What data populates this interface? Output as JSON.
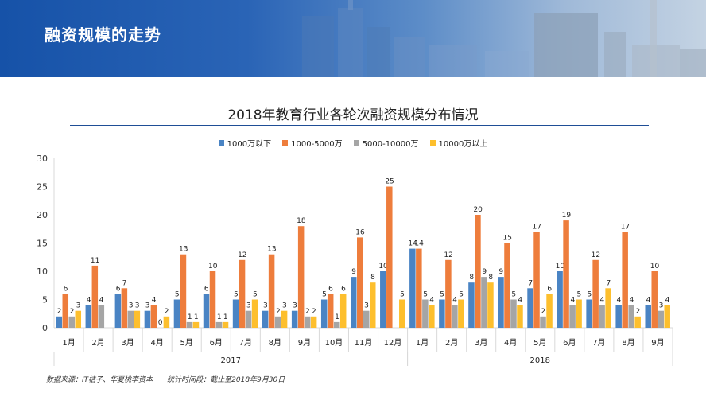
{
  "banner": {
    "title": "融资规模的走势"
  },
  "chart_data": {
    "type": "bar",
    "title": "2018年教育行业各轮次融资规模分布情况",
    "categories": [
      "1月",
      "2月",
      "3月",
      "4月",
      "5月",
      "6月",
      "7月",
      "8月",
      "9月",
      "10月",
      "11月",
      "12月",
      "1月",
      "2月",
      "3月",
      "4月",
      "5月",
      "6月",
      "7月",
      "8月",
      "9月"
    ],
    "groups": [
      {
        "label": "2017",
        "start": 0,
        "end": 11
      },
      {
        "label": "2018",
        "start": 12,
        "end": 20
      }
    ],
    "series": [
      {
        "name": "1000万以下",
        "color": "#4a84c4",
        "values": [
          2,
          4,
          6,
          3,
          5,
          6,
          5,
          3,
          3,
          5,
          9,
          10,
          14,
          5,
          8,
          9,
          7,
          10,
          5,
          4,
          4
        ]
      },
      {
        "name": "1000-5000万",
        "color": "#ee7d3c",
        "values": [
          6,
          11,
          7,
          4,
          13,
          10,
          12,
          13,
          18,
          6,
          16,
          25,
          14,
          12,
          20,
          15,
          17,
          19,
          12,
          17,
          10
        ]
      },
      {
        "name": "5000-10000万",
        "color": "#a5a5a5",
        "values": [
          2,
          4,
          3,
          0,
          1,
          1,
          3,
          2,
          2,
          1,
          3,
          null,
          5,
          4,
          9,
          5,
          2,
          4,
          4,
          4,
          3
        ]
      },
      {
        "name": "10000万以上",
        "color": "#fdbf2d",
        "values": [
          3,
          null,
          3,
          2,
          1,
          1,
          5,
          3,
          2,
          6,
          8,
          5,
          4,
          5,
          8,
          4,
          6,
          5,
          7,
          2,
          4
        ]
      }
    ],
    "ylim": [
      0,
      30
    ],
    "yticks": [
      0,
      5,
      10,
      15,
      20,
      25,
      30
    ],
    "xlabel": "",
    "ylabel": "",
    "legend_position": "top-center"
  },
  "footnote": {
    "source": "数据来源：IT桔子、华夏桃李资本",
    "period": "统计时间段：截止至2018年9月30日"
  }
}
